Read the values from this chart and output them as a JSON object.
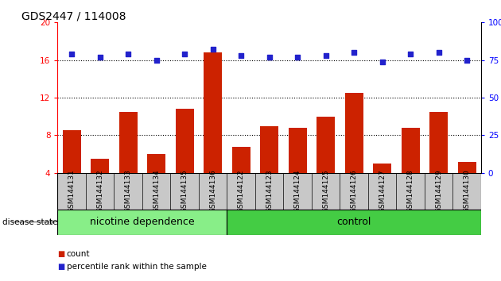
{
  "title": "GDS2447 / 114008",
  "categories": [
    "GSM144131",
    "GSM144132",
    "GSM144133",
    "GSM144134",
    "GSM144135",
    "GSM144136",
    "GSM144122",
    "GSM144123",
    "GSM144124",
    "GSM144125",
    "GSM144126",
    "GSM144127",
    "GSM144128",
    "GSM144129",
    "GSM144130"
  ],
  "count_values": [
    8.5,
    5.5,
    10.5,
    6.0,
    10.8,
    16.8,
    6.8,
    9.0,
    8.8,
    10.0,
    12.5,
    5.0,
    8.8,
    10.5,
    5.2
  ],
  "percentile_values": [
    79,
    77,
    79,
    75,
    79,
    82,
    78,
    77,
    77,
    78,
    80,
    74,
    79,
    80,
    75
  ],
  "group1_label": "nicotine dependence",
  "group2_label": "control",
  "group1_count": 6,
  "group2_count": 9,
  "disease_state_label": "disease state",
  "ylim_left": [
    4,
    20
  ],
  "ylim_right": [
    0,
    100
  ],
  "yticks_left": [
    4,
    8,
    12,
    16,
    20
  ],
  "yticks_right": [
    0,
    25,
    50,
    75,
    100
  ],
  "bar_color": "#cc2200",
  "dot_color": "#2222cc",
  "bar_width": 0.65,
  "bg_color_labels": "#c8c8c8",
  "bg_color_group1": "#88ee88",
  "bg_color_group2": "#44cc44",
  "legend_count_label": "count",
  "legend_pct_label": "percentile rank within the sample",
  "title_fontsize": 10,
  "tick_fontsize": 7.5,
  "label_fontsize": 6.5,
  "group_fontsize": 9,
  "hline_values": [
    8,
    12,
    16
  ]
}
